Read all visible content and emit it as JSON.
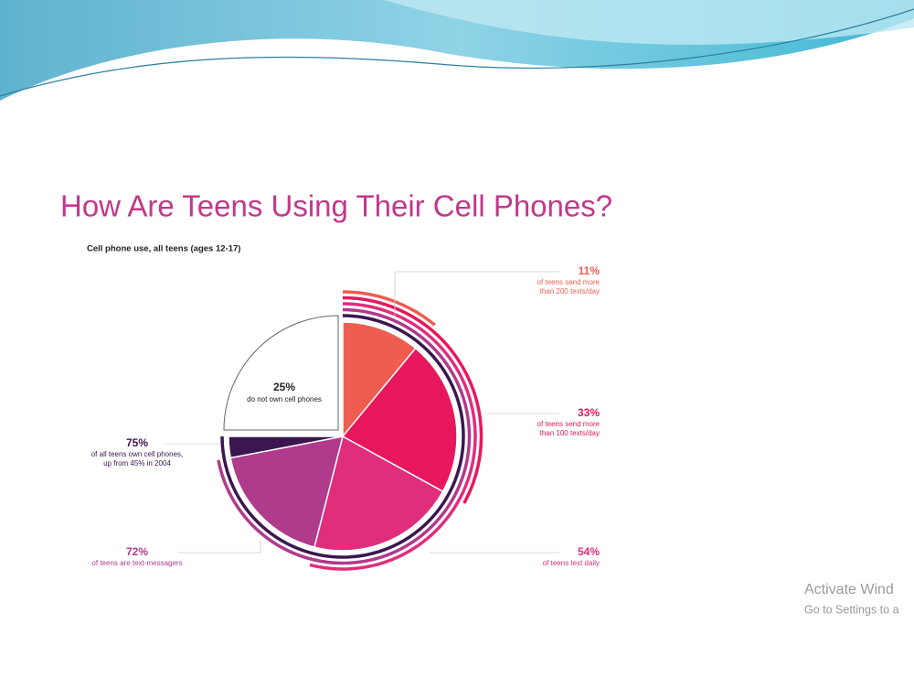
{
  "chart_data": {
    "type": "pie",
    "title": "How Are Teens Using Their Cell Phones?",
    "subtitle": "Cell phone use, all teens (ages 12-17)",
    "categories": [
      [
        "of teens send more",
        "than 200 texts/day"
      ],
      [
        "of teens send more",
        "than 100 texts/day"
      ],
      [
        "of teens text daily"
      ],
      [
        "of teens are text-messagers"
      ],
      [
        "of all teens  own cell phones,",
        "up from 45% in 2004"
      ]
    ],
    "values": [
      11,
      33,
      54,
      72,
      75
    ],
    "value_labels": [
      "11%",
      "33%",
      "54%",
      "72%",
      "75%"
    ],
    "colors": [
      "#ef5d50",
      "#e8175d",
      "#e02d7c",
      "#b03a8c",
      "#3b1650"
    ],
    "other": {
      "value": 25,
      "value_label": "25%",
      "label": "do not own cell phones"
    }
  },
  "watermark": {
    "title": "Activate Wind",
    "subtitle": "Go to Settings to a"
  }
}
